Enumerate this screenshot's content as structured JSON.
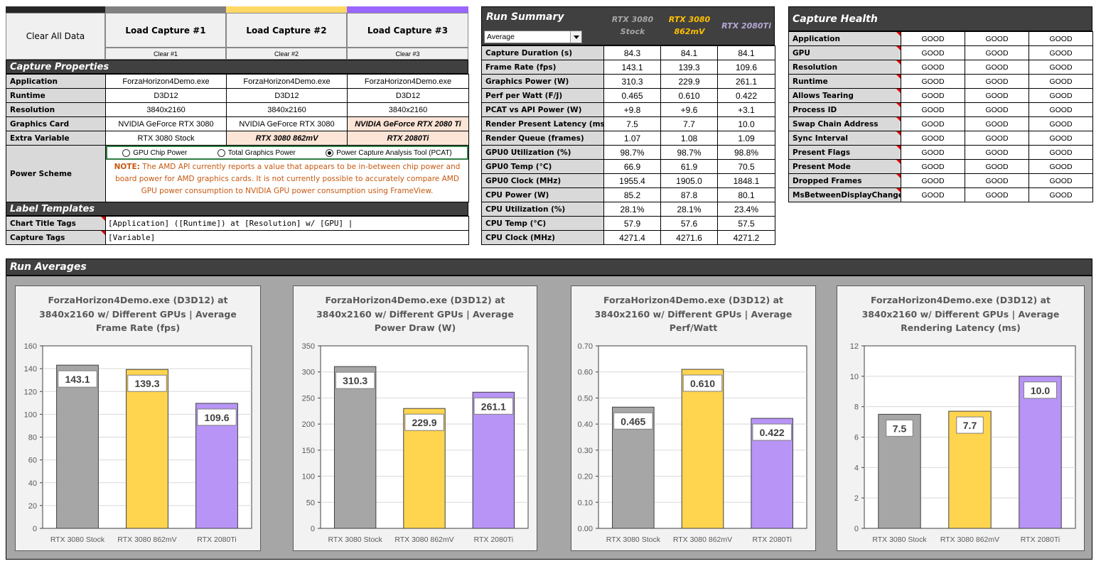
{
  "controls": {
    "clear_all": "Clear All Data",
    "captures": [
      {
        "load_label": "Load Capture #1",
        "clear_label": "Clear #1",
        "color": "#808080"
      },
      {
        "load_label": "Load Capture #2",
        "clear_label": "Clear #2",
        "color": "#ffd966"
      },
      {
        "load_label": "Load Capture #3",
        "clear_label": "Clear #3",
        "color": "#9966ff"
      }
    ]
  },
  "capture_properties": {
    "title": "Capture Properties",
    "rows": [
      {
        "label": "Application",
        "values": [
          "ForzaHorizon4Demo.exe",
          "ForzaHorizon4Demo.exe",
          "ForzaHorizon4Demo.exe"
        ]
      },
      {
        "label": "Runtime",
        "values": [
          "D3D12",
          "D3D12",
          "D3D12"
        ]
      },
      {
        "label": "Resolution",
        "values": [
          "3840x2160",
          "3840x2160",
          "3840x2160"
        ]
      },
      {
        "label": "Graphics Card",
        "values": [
          "NVIDIA GeForce RTX 3080",
          "NVIDIA GeForce RTX 3080",
          "NVIDIA GeForce RTX 2080 Ti"
        ]
      },
      {
        "label": "Extra Variable",
        "values": [
          "RTX 3080 Stock",
          "RTX 3080 862mV",
          "RTX 2080Ti"
        ]
      }
    ],
    "power_scheme": {
      "label": "Power Scheme",
      "options": [
        "GPU Chip Power",
        "Total Graphics Power",
        "Power Capture Analysis Tool (PCAT)"
      ],
      "selected": "Power Capture Analysis Tool (PCAT)",
      "note_prefix": "NOTE:",
      "note_text": "The AMD API currently reports a value that appears to be in-between chip power and board power for AMD graphics cards. It is not currently possible to accurately compare AMD GPU power consumption to NVIDIA GPU power consumption using FrameView."
    }
  },
  "label_templates": {
    "title": "Label Templates",
    "chart_title_label": "Chart Title Tags",
    "chart_title_value": "[Application] ([Runtime]) at [Resolution] w/ [GPU] |",
    "capture_tags_label": "Capture Tags",
    "capture_tags_value": "[Variable]"
  },
  "run_summary": {
    "title": "Run Summary",
    "stat_select": "Average",
    "columns": [
      {
        "line1": "RTX 3080",
        "line2": "Stock",
        "color": "#a6a6a6"
      },
      {
        "line1": "RTX 3080",
        "line2": "862mV",
        "color": "#ffc000"
      },
      {
        "line1": "RTX 2080Ti",
        "line2": "",
        "color": "#b4a7d6"
      }
    ],
    "rows": [
      {
        "label": "Capture Duration (s)",
        "values": [
          "84.3",
          "84.1",
          "84.1"
        ]
      },
      {
        "label": "Frame Rate (fps)",
        "values": [
          "143.1",
          "139.3",
          "109.6"
        ]
      },
      {
        "label": "Graphics Power (W)",
        "values": [
          "310.3",
          "229.9",
          "261.1"
        ]
      },
      {
        "label": "Perf per Watt (F/J)",
        "values": [
          "0.465",
          "0.610",
          "0.422"
        ]
      },
      {
        "label": "PCAT vs API Power (W)",
        "values": [
          "+9.8",
          "+9.6",
          "+3.1"
        ]
      },
      {
        "label": "Render Present Latency (ms)",
        "values": [
          "7.5",
          "7.7",
          "10.0"
        ]
      },
      {
        "label": "Render Queue (frames)",
        "values": [
          "1.07",
          "1.08",
          "1.09"
        ]
      },
      {
        "label": "GPU0 Utilization (%)",
        "values": [
          "98.7%",
          "98.7%",
          "98.8%"
        ]
      },
      {
        "label": "GPU0 Temp (°C)",
        "values": [
          "66.9",
          "61.9",
          "70.5"
        ]
      },
      {
        "label": "GPU0 Clock (MHz)",
        "values": [
          "1955.4",
          "1905.0",
          "1848.1"
        ]
      },
      {
        "label": "CPU Power (W)",
        "values": [
          "85.2",
          "87.8",
          "80.1"
        ]
      },
      {
        "label": "CPU Utilization (%)",
        "values": [
          "28.1%",
          "28.1%",
          "23.4%"
        ]
      },
      {
        "label": "CPU Temp (°C)",
        "values": [
          "57.9",
          "57.6",
          "57.5"
        ]
      },
      {
        "label": "CPU Clock (MHz)",
        "values": [
          "4271.4",
          "4271.6",
          "4271.2"
        ]
      }
    ]
  },
  "capture_health": {
    "title": "Capture Health",
    "rows": [
      {
        "label": "Application",
        "values": [
          "GOOD",
          "GOOD",
          "GOOD"
        ]
      },
      {
        "label": "GPU",
        "values": [
          "GOOD",
          "GOOD",
          "GOOD"
        ]
      },
      {
        "label": "Resolution",
        "values": [
          "GOOD",
          "GOOD",
          "GOOD"
        ]
      },
      {
        "label": "Runtime",
        "values": [
          "GOOD",
          "GOOD",
          "GOOD"
        ]
      },
      {
        "label": "Allows Tearing",
        "values": [
          "GOOD",
          "GOOD",
          "GOOD"
        ]
      },
      {
        "label": "Process ID",
        "values": [
          "GOOD",
          "GOOD",
          "GOOD"
        ]
      },
      {
        "label": "Swap Chain Address",
        "values": [
          "GOOD",
          "GOOD",
          "GOOD"
        ]
      },
      {
        "label": "Sync Interval",
        "values": [
          "GOOD",
          "GOOD",
          "GOOD"
        ]
      },
      {
        "label": "Present Flags",
        "values": [
          "GOOD",
          "GOOD",
          "GOOD"
        ]
      },
      {
        "label": "Present Mode",
        "values": [
          "GOOD",
          "GOOD",
          "GOOD"
        ]
      },
      {
        "label": "Dropped Frames",
        "values": [
          "GOOD",
          "GOOD",
          "GOOD"
        ]
      },
      {
        "label": "MsBetweenDisplayChange",
        "values": [
          "GOOD",
          "GOOD",
          "GOOD"
        ]
      }
    ]
  },
  "run_averages": {
    "title": "Run Averages"
  },
  "chart_data": [
    {
      "type": "bar",
      "title": "ForzaHorizon4Demo.exe (D3D12) at 3840x2160 w/ Different GPUs | Average Frame Rate (fps)",
      "title_lines": [
        "ForzaHorizon4Demo.exe (D3D12) at",
        "3840x2160 w/ Different GPUs | Average",
        "Frame Rate (fps)"
      ],
      "categories": [
        "RTX 3080 Stock",
        "RTX 3080 862mV",
        "RTX 2080Ti"
      ],
      "values": [
        143.1,
        139.3,
        109.6
      ],
      "labels": [
        "143.1",
        "139.3",
        "109.6"
      ],
      "colors": [
        "#a6a6a6",
        "#ffd54f",
        "#b794f6"
      ],
      "ylim": [
        0,
        160
      ],
      "yticks": [
        "0",
        "20",
        "40",
        "60",
        "80",
        "100",
        "120",
        "140",
        "160"
      ],
      "xlabel": "",
      "ylabel": "",
      "grid": true
    },
    {
      "type": "bar",
      "title": "ForzaHorizon4Demo.exe (D3D12) at 3840x2160 w/ Different GPUs | Average Power Draw (W)",
      "title_lines": [
        "ForzaHorizon4Demo.exe (D3D12) at",
        "3840x2160 w/ Different GPUs | Average",
        "Power Draw (W)"
      ],
      "categories": [
        "RTX 3080 Stock",
        "RTX 3080 862mV",
        "RTX 2080Ti"
      ],
      "values": [
        310.3,
        229.9,
        261.1
      ],
      "labels": [
        "310.3",
        "229.9",
        "261.1"
      ],
      "colors": [
        "#a6a6a6",
        "#ffd54f",
        "#b794f6"
      ],
      "ylim": [
        0,
        350
      ],
      "yticks": [
        "0",
        "50",
        "100",
        "150",
        "200",
        "250",
        "300",
        "350"
      ],
      "xlabel": "",
      "ylabel": "",
      "grid": true
    },
    {
      "type": "bar",
      "title": "ForzaHorizon4Demo.exe (D3D12) at 3840x2160 w/ Different GPUs | Average Perf/Watt",
      "title_lines": [
        "ForzaHorizon4Demo.exe (D3D12) at",
        "3840x2160 w/ Different GPUs | Average",
        "Perf/Watt"
      ],
      "categories": [
        "RTX 3080 Stock",
        "RTX 3080 862mV",
        "RTX 2080Ti"
      ],
      "values": [
        0.465,
        0.61,
        0.422
      ],
      "labels": [
        "0.465",
        "0.610",
        "0.422"
      ],
      "colors": [
        "#a6a6a6",
        "#ffd54f",
        "#b794f6"
      ],
      "ylim": [
        0,
        0.7
      ],
      "yticks": [
        "0.00",
        "0.10",
        "0.20",
        "0.30",
        "0.40",
        "0.50",
        "0.60",
        "0.70"
      ],
      "xlabel": "",
      "ylabel": "",
      "grid": true
    },
    {
      "type": "bar",
      "title": "ForzaHorizon4Demo.exe (D3D12) at 3840x2160 w/ Different GPUs | Average Rendering Latency (ms)",
      "title_lines": [
        "ForzaHorizon4Demo.exe (D3D12) at",
        "3840x2160 w/ Different GPUs | Average",
        "Rendering Latency (ms)"
      ],
      "categories": [
        "RTX 3080 Stock",
        "RTX 3080 862mV",
        "RTX 2080Ti"
      ],
      "values": [
        7.5,
        7.7,
        10.0
      ],
      "labels": [
        "7.5",
        "7.7",
        "10.0"
      ],
      "colors": [
        "#a6a6a6",
        "#ffd54f",
        "#b794f6"
      ],
      "ylim": [
        0,
        12
      ],
      "yticks": [
        "0",
        "2",
        "4",
        "6",
        "8",
        "10",
        "12"
      ],
      "xlabel": "",
      "ylabel": "",
      "grid": true
    }
  ]
}
